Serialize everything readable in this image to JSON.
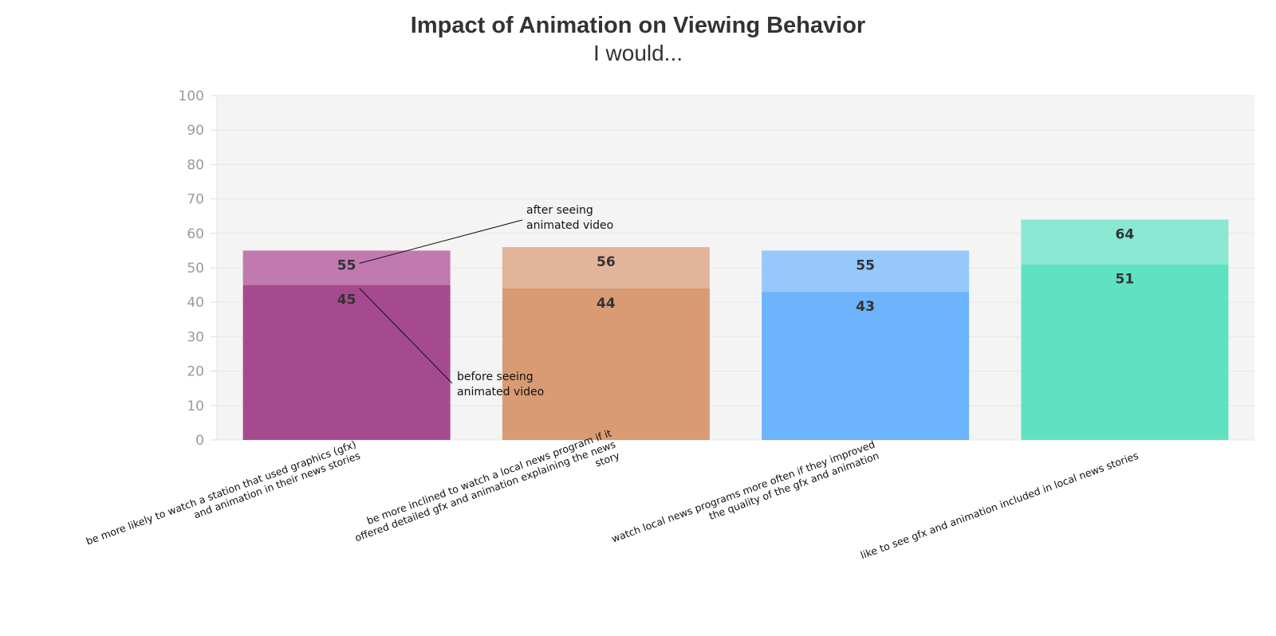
{
  "chart_data": {
    "type": "bar",
    "title": "Impact of Animation on Viewing Behavior",
    "subtitle": "I would...",
    "xlabel": "",
    "ylabel": "",
    "ylim": [
      0,
      100
    ],
    "yticks": [
      0,
      10,
      20,
      30,
      40,
      50,
      60,
      70,
      80,
      90,
      100
    ],
    "grid": true,
    "categories": [
      [
        "be more likely to watch a station that used graphics (gfx)",
        "and animation in their news stories"
      ],
      [
        "be more inclined to watch a local news program if it",
        "offered detailed gfx and animation explaining the news",
        "story"
      ],
      [
        "watch local news programs more often if they improved",
        "the quality of the gfx and animation"
      ],
      [
        "like to see gfx and animation included in local news stories"
      ]
    ],
    "series": [
      {
        "values": [
          45,
          44,
          43,
          51
        ]
      },
      {
        "values": [
          55,
          56,
          55,
          64
        ]
      }
    ],
    "colors": {
      "before": [
        "#a64a8f",
        "#d89b74",
        "#6cb4fb",
        "#60e2c2"
      ],
      "after": [
        "#c07aaf",
        "#e2b49a",
        "#97c8fb",
        "#8ae8d2"
      ]
    },
    "annotations": [
      {
        "text": [
          "after seeing",
          "animated video"
        ],
        "series": 1,
        "category": 0
      },
      {
        "text": [
          "before seeing",
          "animated video"
        ],
        "series": 0,
        "category": 0
      }
    ]
  }
}
